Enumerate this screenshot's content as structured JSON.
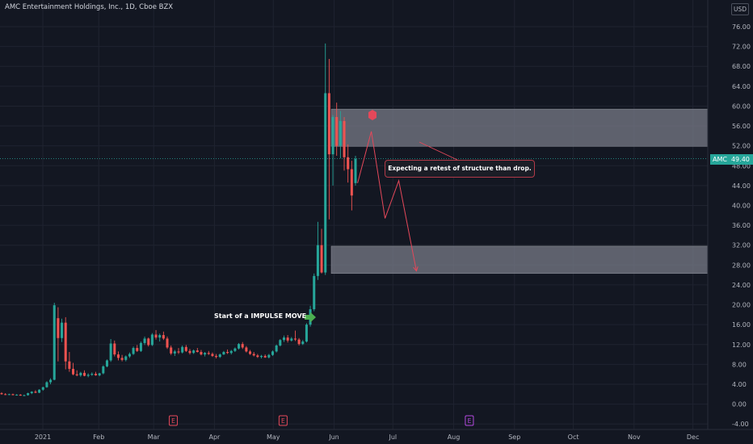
{
  "header": {
    "title": "AMC Entertainment Holdings, Inc., 1D, Cboe BZX",
    "currency": "USD"
  },
  "price_tag": {
    "symbol": "AMC",
    "value": "49.40"
  },
  "annotations": {
    "note": "Expecting a retest of structure than drop.",
    "impulse": "Start of a IMPULSE MOVE"
  },
  "events": [
    {
      "label": "E",
      "month": "Mar",
      "color": "#e5485a"
    },
    {
      "label": "E",
      "month": "May",
      "color": "#e5485a"
    },
    {
      "label": "E",
      "month": "Aug",
      "color": "#b44ae0"
    }
  ],
  "colors": {
    "up": "#26a69a",
    "down": "#ef5350",
    "zone": "#7b7e8a",
    "projection": "#e5485a",
    "arrow_green": "#4caf50"
  },
  "chart_data": {
    "type": "candlestick",
    "title": "AMC Entertainment Holdings, Inc., 1D, Cboe BZX",
    "ylim": [
      -4,
      78
    ],
    "y_ticks": [
      "76.00",
      "72.00",
      "68.00",
      "64.00",
      "60.00",
      "56.00",
      "52.00",
      "48.00",
      "44.00",
      "40.00",
      "36.00",
      "32.00",
      "28.00",
      "24.00",
      "20.00",
      "16.00",
      "12.00",
      "8.00",
      "4.00",
      "0.00",
      "-4.00"
    ],
    "x_ticks": [
      "2021",
      "Feb",
      "Mar",
      "Apr",
      "May",
      "Jun",
      "Jul",
      "Aug",
      "Sep",
      "Oct",
      "Nov",
      "Dec"
    ],
    "last_price": 49.4,
    "zones": [
      {
        "y_low": 51.9,
        "y_high": 59.4
      },
      {
        "y_low": 26.3,
        "y_high": 31.8
      }
    ],
    "projection_path": [
      {
        "date": "2021-06-13",
        "y": 44.5
      },
      {
        "date": "2021-06-20",
        "y": 54.9
      },
      {
        "date": "2021-06-27",
        "y": 37.4
      },
      {
        "date": "2021-07-04",
        "y": 45.0
      },
      {
        "date": "2021-07-13",
        "y": 26.8
      }
    ],
    "candles": [
      {
        "o": 2.2,
        "h": 2.4,
        "l": 1.9,
        "c": 2.0
      },
      {
        "o": 2.0,
        "h": 2.2,
        "l": 1.8,
        "c": 1.9
      },
      {
        "o": 1.9,
        "h": 2.1,
        "l": 1.8,
        "c": 2.0
      },
      {
        "o": 2.0,
        "h": 2.1,
        "l": 1.8,
        "c": 1.8
      },
      {
        "o": 1.8,
        "h": 2.0,
        "l": 1.7,
        "c": 1.9
      },
      {
        "o": 1.9,
        "h": 2.0,
        "l": 1.7,
        "c": 1.7
      },
      {
        "o": 1.7,
        "h": 1.9,
        "l": 1.6,
        "c": 1.8
      },
      {
        "o": 1.8,
        "h": 2.3,
        "l": 1.7,
        "c": 2.2
      },
      {
        "o": 2.2,
        "h": 2.6,
        "l": 2.0,
        "c": 2.5
      },
      {
        "o": 2.5,
        "h": 2.8,
        "l": 2.2,
        "c": 2.3
      },
      {
        "o": 2.3,
        "h": 3.0,
        "l": 2.2,
        "c": 2.9
      },
      {
        "o": 2.9,
        "h": 3.5,
        "l": 2.7,
        "c": 3.4
      },
      {
        "o": 3.4,
        "h": 4.6,
        "l": 3.3,
        "c": 4.4
      },
      {
        "o": 4.4,
        "h": 5.2,
        "l": 4.0,
        "c": 4.9
      },
      {
        "o": 4.9,
        "h": 20.4,
        "l": 4.8,
        "c": 19.9
      },
      {
        "o": 17.3,
        "h": 19.5,
        "l": 8.6,
        "c": 13.3
      },
      {
        "o": 13.3,
        "h": 17.2,
        "l": 12.5,
        "c": 16.4
      },
      {
        "o": 16.4,
        "h": 17.5,
        "l": 7.0,
        "c": 8.6
      },
      {
        "o": 8.6,
        "h": 10.5,
        "l": 6.5,
        "c": 7.1
      },
      {
        "o": 7.1,
        "h": 8.3,
        "l": 5.8,
        "c": 6.0
      },
      {
        "o": 6.0,
        "h": 6.8,
        "l": 5.6,
        "c": 5.8
      },
      {
        "o": 5.8,
        "h": 6.5,
        "l": 5.5,
        "c": 6.3
      },
      {
        "o": 6.3,
        "h": 6.8,
        "l": 5.6,
        "c": 5.7
      },
      {
        "o": 5.7,
        "h": 6.2,
        "l": 5.4,
        "c": 5.9
      },
      {
        "o": 5.9,
        "h": 6.4,
        "l": 5.7,
        "c": 6.1
      },
      {
        "o": 6.1,
        "h": 6.5,
        "l": 5.7,
        "c": 5.8
      },
      {
        "o": 5.8,
        "h": 6.3,
        "l": 5.6,
        "c": 6.2
      },
      {
        "o": 6.2,
        "h": 7.8,
        "l": 6.0,
        "c": 7.6
      },
      {
        "o": 7.6,
        "h": 9.0,
        "l": 7.4,
        "c": 8.8
      },
      {
        "o": 8.8,
        "h": 13.1,
        "l": 8.5,
        "c": 12.2
      },
      {
        "o": 12.2,
        "h": 12.8,
        "l": 9.6,
        "c": 10.0
      },
      {
        "o": 10.0,
        "h": 10.6,
        "l": 8.8,
        "c": 9.3
      },
      {
        "o": 9.3,
        "h": 9.9,
        "l": 8.6,
        "c": 8.9
      },
      {
        "o": 8.9,
        "h": 9.8,
        "l": 8.6,
        "c": 9.6
      },
      {
        "o": 9.6,
        "h": 10.4,
        "l": 9.3,
        "c": 10.1
      },
      {
        "o": 10.1,
        "h": 11.6,
        "l": 9.9,
        "c": 11.3
      },
      {
        "o": 11.3,
        "h": 11.9,
        "l": 10.5,
        "c": 10.7
      },
      {
        "o": 10.7,
        "h": 12.6,
        "l": 10.5,
        "c": 12.3
      },
      {
        "o": 12.3,
        "h": 13.6,
        "l": 11.9,
        "c": 13.2
      },
      {
        "o": 13.2,
        "h": 13.4,
        "l": 11.6,
        "c": 11.9
      },
      {
        "o": 11.9,
        "h": 14.3,
        "l": 11.7,
        "c": 14.0
      },
      {
        "o": 14.0,
        "h": 14.9,
        "l": 13.0,
        "c": 13.4
      },
      {
        "o": 13.4,
        "h": 14.2,
        "l": 12.6,
        "c": 13.9
      },
      {
        "o": 13.9,
        "h": 14.6,
        "l": 12.9,
        "c": 13.2
      },
      {
        "o": 13.2,
        "h": 13.6,
        "l": 11.1,
        "c": 11.4
      },
      {
        "o": 11.4,
        "h": 11.8,
        "l": 9.9,
        "c": 10.2
      },
      {
        "o": 10.2,
        "h": 10.9,
        "l": 9.7,
        "c": 10.6
      },
      {
        "o": 10.6,
        "h": 11.3,
        "l": 10.1,
        "c": 10.4
      },
      {
        "o": 10.4,
        "h": 11.8,
        "l": 10.2,
        "c": 11.5
      },
      {
        "o": 11.5,
        "h": 11.9,
        "l": 10.5,
        "c": 10.7
      },
      {
        "o": 10.7,
        "h": 11.1,
        "l": 10.0,
        "c": 10.3
      },
      {
        "o": 10.3,
        "h": 11.0,
        "l": 10.1,
        "c": 10.8
      },
      {
        "o": 10.8,
        "h": 11.3,
        "l": 10.4,
        "c": 10.5
      },
      {
        "o": 10.5,
        "h": 10.9,
        "l": 9.8,
        "c": 10.0
      },
      {
        "o": 10.0,
        "h": 10.5,
        "l": 9.6,
        "c": 10.3
      },
      {
        "o": 10.3,
        "h": 10.7,
        "l": 9.9,
        "c": 10.1
      },
      {
        "o": 10.1,
        "h": 10.4,
        "l": 9.5,
        "c": 9.7
      },
      {
        "o": 9.7,
        "h": 10.1,
        "l": 9.2,
        "c": 9.5
      },
      {
        "o": 9.5,
        "h": 10.2,
        "l": 9.3,
        "c": 10.0
      },
      {
        "o": 10.0,
        "h": 10.7,
        "l": 9.9,
        "c": 10.5
      },
      {
        "o": 10.5,
        "h": 11.0,
        "l": 10.1,
        "c": 10.3
      },
      {
        "o": 10.3,
        "h": 10.9,
        "l": 10.0,
        "c": 10.7
      },
      {
        "o": 10.7,
        "h": 11.4,
        "l": 10.5,
        "c": 11.2
      },
      {
        "o": 11.2,
        "h": 12.3,
        "l": 11.0,
        "c": 12.1
      },
      {
        "o": 12.1,
        "h": 12.5,
        "l": 11.1,
        "c": 11.4
      },
      {
        "o": 11.4,
        "h": 11.7,
        "l": 10.4,
        "c": 10.6
      },
      {
        "o": 10.6,
        "h": 10.9,
        "l": 9.9,
        "c": 10.1
      },
      {
        "o": 10.1,
        "h": 10.5,
        "l": 9.6,
        "c": 9.8
      },
      {
        "o": 9.8,
        "h": 10.1,
        "l": 9.3,
        "c": 9.5
      },
      {
        "o": 9.5,
        "h": 9.9,
        "l": 9.2,
        "c": 9.7
      },
      {
        "o": 9.7,
        "h": 10.0,
        "l": 9.3,
        "c": 9.4
      },
      {
        "o": 9.4,
        "h": 10.1,
        "l": 9.2,
        "c": 9.9
      },
      {
        "o": 9.9,
        "h": 10.8,
        "l": 9.7,
        "c": 10.6
      },
      {
        "o": 10.6,
        "h": 12.0,
        "l": 10.4,
        "c": 11.8
      },
      {
        "o": 11.8,
        "h": 13.1,
        "l": 11.6,
        "c": 12.9
      },
      {
        "o": 12.9,
        "h": 13.8,
        "l": 12.5,
        "c": 13.4
      },
      {
        "o": 13.4,
        "h": 13.9,
        "l": 12.4,
        "c": 12.8
      },
      {
        "o": 12.8,
        "h": 13.5,
        "l": 12.6,
        "c": 13.2
      },
      {
        "o": 13.2,
        "h": 14.8,
        "l": 12.7,
        "c": 13.0
      },
      {
        "o": 13.0,
        "h": 13.3,
        "l": 11.8,
        "c": 12.1
      },
      {
        "o": 12.1,
        "h": 12.9,
        "l": 11.9,
        "c": 12.6
      },
      {
        "o": 12.6,
        "h": 16.3,
        "l": 12.4,
        "c": 16.0
      },
      {
        "o": 16.0,
        "h": 19.8,
        "l": 15.6,
        "c": 19.1
      },
      {
        "o": 19.1,
        "h": 26.3,
        "l": 18.7,
        "c": 25.8
      },
      {
        "o": 25.8,
        "h": 36.7,
        "l": 25.0,
        "c": 32.0
      },
      {
        "o": 32.0,
        "h": 35.3,
        "l": 26.3,
        "c": 26.5
      },
      {
        "o": 26.5,
        "h": 72.6,
        "l": 26.0,
        "c": 62.6
      },
      {
        "o": 62.6,
        "h": 69.5,
        "l": 37.2,
        "c": 50.3
      },
      {
        "o": 50.3,
        "h": 58.2,
        "l": 44.0,
        "c": 57.8
      },
      {
        "o": 57.8,
        "h": 60.7,
        "l": 50.0,
        "c": 52.0
      },
      {
        "o": 52.0,
        "h": 59.0,
        "l": 49.5,
        "c": 57.0
      },
      {
        "o": 57.0,
        "h": 57.8,
        "l": 47.0,
        "c": 49.7
      },
      {
        "o": 49.7,
        "h": 52.3,
        "l": 44.6,
        "c": 47.3
      },
      {
        "o": 47.3,
        "h": 49.0,
        "l": 39.0,
        "c": 42.0
      },
      {
        "o": 44.5,
        "h": 50.0,
        "l": 44.0,
        "c": 49.4
      }
    ]
  }
}
